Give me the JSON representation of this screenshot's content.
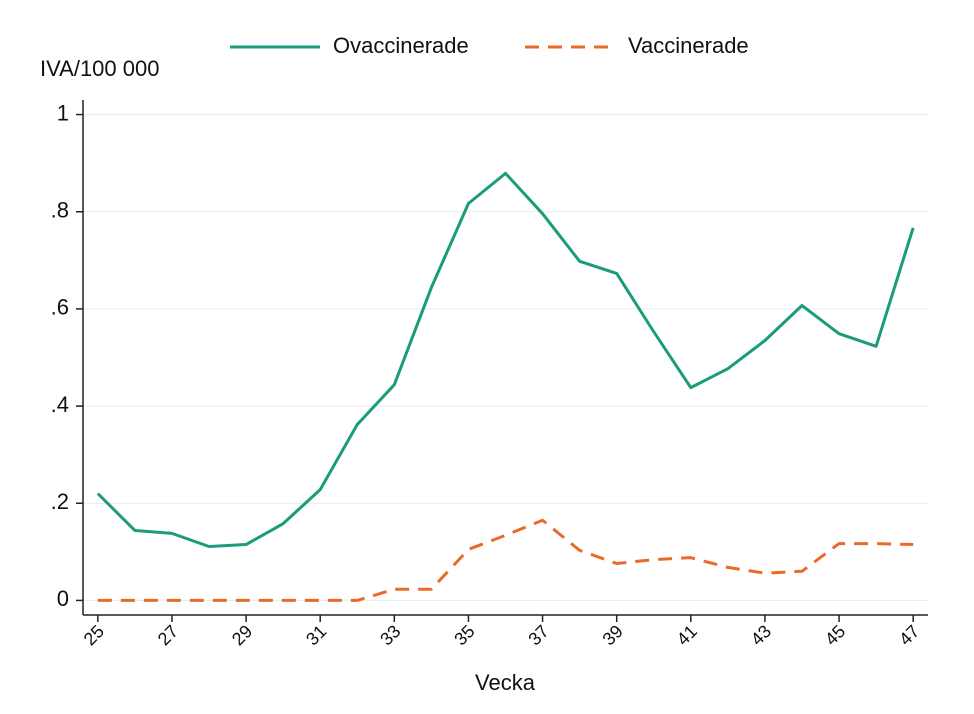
{
  "chart_data": {
    "type": "line",
    "y_label": "IVA/100 000",
    "x_label": "Vecka",
    "x": [
      25,
      26,
      27,
      28,
      29,
      30,
      31,
      32,
      33,
      34,
      35,
      36,
      37,
      38,
      39,
      40,
      41,
      42,
      43,
      44,
      45,
      46,
      47
    ],
    "series": [
      {
        "name": "Ovaccinerade",
        "color": "#1a9c7c",
        "dash": false,
        "values": [
          0.22,
          0.144,
          0.138,
          0.111,
          0.115,
          0.158,
          0.228,
          0.362,
          0.444,
          0.644,
          0.817,
          0.879,
          0.796,
          0.698,
          0.673,
          0.553,
          0.438,
          0.477,
          0.535,
          0.607,
          0.549,
          0.523,
          0.767
        ]
      },
      {
        "name": "Vaccinerade",
        "color": "#ea6a2b",
        "dash": true,
        "values": [
          0,
          0,
          0,
          0,
          0,
          0,
          0,
          0,
          0.023,
          0.023,
          0.105,
          0.134,
          0.165,
          0.103,
          0.076,
          0.084,
          0.088,
          0.068,
          0.056,
          0.06,
          0.117,
          0.117,
          0.115
        ]
      }
    ],
    "xlim": [
      24.6,
      47.4
    ],
    "xticks": [
      25,
      27,
      29,
      31,
      33,
      35,
      37,
      39,
      41,
      43,
      45,
      47
    ],
    "ylim": [
      -0.03,
      1.03
    ],
    "yticks": [
      0,
      {
        "value": 0.2,
        "label": ".2"
      },
      {
        "value": 0.4,
        "label": ".4"
      },
      {
        "value": 0.6,
        "label": ".6"
      },
      {
        "value": 0.8,
        "label": ".8"
      },
      1
    ],
    "grid": true
  }
}
